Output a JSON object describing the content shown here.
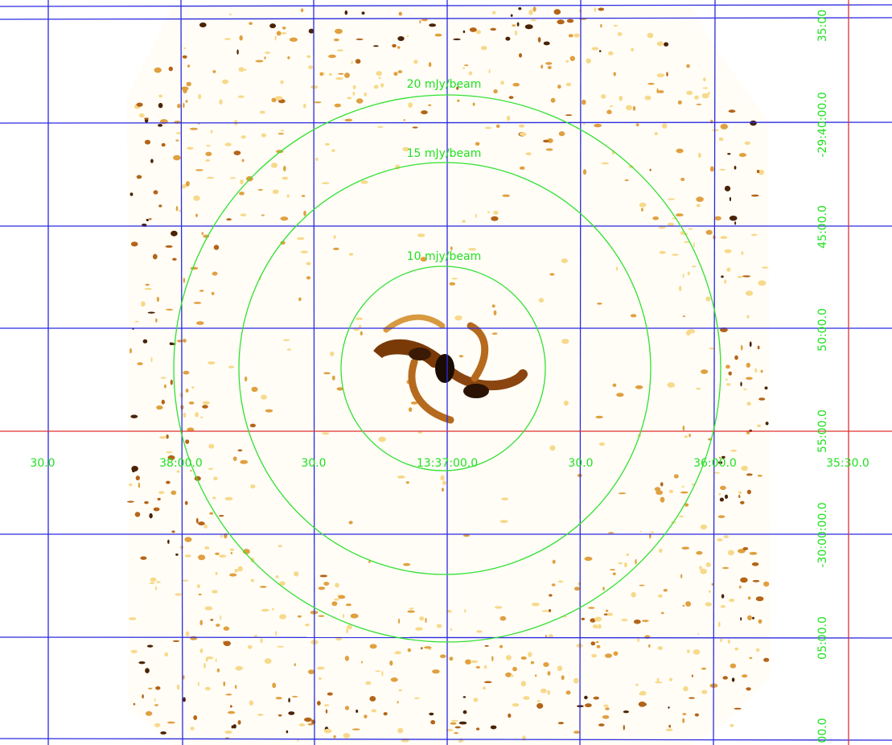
{
  "image": {
    "ra_labels": [
      "30.0",
      "38:00.0",
      "30.0",
      "13:37:00.0",
      "30.0",
      "36:00.0",
      "35:30.0"
    ],
    "dec_labels": [
      "35:00",
      "-29:40:00.0",
      "45:00.0",
      "50:00.0",
      "55:00.0",
      "-30:00:00.0",
      "05:00.0",
      "00.0"
    ],
    "contour_labels": [
      "20 mJy/beam",
      "15 mJy/beam",
      "10 mjy/beam"
    ]
  }
}
